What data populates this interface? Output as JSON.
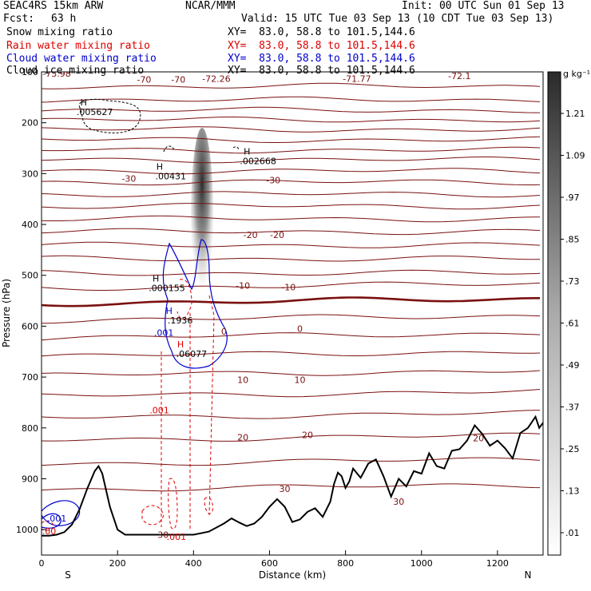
{
  "header": {
    "model": "SEAC4RS 15km ARW",
    "org": "NCAR/MMM",
    "init": "Init: 00 UTC Sun 01 Sep 13",
    "fcst_label": "Fcst:",
    "fcst_value": "63 h",
    "valid": "Valid: 15 UTC Tue 03 Sep 13 (10 CDT Tue 03 Sep 13)",
    "fields": [
      {
        "name": "Snow mixing ratio",
        "color": "#000000",
        "xy": "XY=  83.0, 58.8 to 101.5,144.6"
      },
      {
        "name": "Rain water mixing ratio",
        "color": "#dd0000",
        "xy": "XY=  83.0, 58.8 to 101.5,144.6"
      },
      {
        "name": "Cloud water mixing ratio",
        "color": "#0000cc",
        "xy": "XY=  83.0, 58.8 to 101.5,144.6"
      },
      {
        "name": "Cloud ice mixing ratio",
        "color": "#000000",
        "xy": "XY=  83.0, 58.8 to 101.5,144.6"
      }
    ]
  },
  "chart_data": {
    "type": "contour",
    "xlabel": "Distance (km)",
    "ylabel": "Pressure (hPa)",
    "xlim": [
      0,
      1320
    ],
    "ylim": [
      1050,
      100
    ],
    "x_ticks": [
      0,
      200,
      400,
      600,
      800,
      1000,
      1200
    ],
    "y_ticks": [
      1000,
      900,
      800,
      700,
      600,
      500,
      400,
      300,
      200,
      100
    ],
    "end_labels": {
      "left": "S",
      "right": "N"
    },
    "colorbar": {
      "unit": "g kg⁻¹",
      "ticks": [
        "1.21",
        "1.09",
        ".97",
        ".85",
        ".73",
        ".61",
        ".49",
        ".37",
        ".25",
        ".13",
        ".01"
      ]
    },
    "temperature_contours": {
      "color": "#7a1010",
      "labels": [
        {
          "x": 40,
          "p": 103,
          "text": "-73.98"
        },
        {
          "x": 270,
          "p": 115,
          "text": "-70"
        },
        {
          "x": 360,
          "p": 115,
          "text": "-70"
        },
        {
          "x": 460,
          "p": 113,
          "text": "-72.26"
        },
        {
          "x": 830,
          "p": 113,
          "text": "-71.77"
        },
        {
          "x": 1100,
          "p": 108,
          "text": "-72.1"
        },
        {
          "x": 230,
          "p": 310,
          "text": "-30"
        },
        {
          "x": 610,
          "p": 313,
          "text": "-30"
        },
        {
          "x": 550,
          "p": 420,
          "text": "-20"
        },
        {
          "x": 620,
          "p": 420,
          "text": "-20"
        },
        {
          "x": 530,
          "p": 520,
          "text": "-10"
        },
        {
          "x": 650,
          "p": 523,
          "text": "-10"
        },
        {
          "x": 480,
          "p": 610,
          "text": "0"
        },
        {
          "x": 680,
          "p": 605,
          "text": "0"
        },
        {
          "x": 530,
          "p": 705,
          "text": "10"
        },
        {
          "x": 680,
          "p": 705,
          "text": "10"
        },
        {
          "x": 530,
          "p": 818,
          "text": "20"
        },
        {
          "x": 700,
          "p": 814,
          "text": "20"
        },
        {
          "x": 1150,
          "p": 820,
          "text": "20"
        },
        {
          "x": 640,
          "p": 920,
          "text": "30"
        },
        {
          "x": 940,
          "p": 945,
          "text": "30"
        },
        {
          "x": 320,
          "p": 1010,
          "text": "30"
        }
      ]
    },
    "maxima": [
      {
        "field": "snow",
        "x": 140,
        "p": 175,
        "text": ".005627"
      },
      {
        "field": "snow",
        "x": 340,
        "p": 302,
        "text": ".00431"
      },
      {
        "field": "snow",
        "x": 570,
        "p": 272,
        "text": ".002668"
      },
      {
        "field": "cloud_ice",
        "x": 330,
        "p": 522,
        "text": ".000155"
      },
      {
        "field": "cloud_water",
        "x": 365,
        "p": 585,
        "text": ".1936"
      },
      {
        "field": "rain",
        "x": 395,
        "p": 651,
        "text": ".06077"
      }
    ],
    "contour_labels": [
      {
        "field": "cloud_water",
        "x": 322,
        "p": 613,
        "text": ".001",
        "color": "#0000cc"
      },
      {
        "field": "rain",
        "x": 310,
        "p": 765,
        "text": ".001",
        "color": "#dd0000"
      },
      {
        "field": "cloud_water",
        "x": 40,
        "p": 978,
        "text": ".001",
        "color": "#0000cc"
      },
      {
        "field": "rain",
        "x": 20,
        "p": 1003,
        "text": ".00",
        "color": "#dd0000"
      },
      {
        "field": "rain",
        "x": 355,
        "p": 1014,
        "text": ".001",
        "color": "#dd0000"
      }
    ],
    "terrain": {
      "x": [
        0,
        20,
        40,
        60,
        80,
        100,
        120,
        140,
        150,
        160,
        180,
        200,
        220,
        300,
        400,
        440,
        480,
        500,
        520,
        540,
        560,
        580,
        600,
        620,
        640,
        660,
        680,
        700,
        720,
        740,
        760,
        770,
        780,
        790,
        800,
        810,
        820,
        840,
        860,
        880,
        900,
        920,
        940,
        960,
        980,
        1000,
        1020,
        1040,
        1060,
        1080,
        1100,
        1120,
        1140,
        1160,
        1180,
        1200,
        1220,
        1240,
        1260,
        1280,
        1300,
        1310,
        1320
      ],
      "p": [
        1012,
        1012,
        1010,
        1005,
        990,
        960,
        920,
        885,
        875,
        890,
        955,
        1000,
        1010,
        1010,
        1010,
        1004,
        988,
        978,
        986,
        993,
        988,
        975,
        955,
        940,
        955,
        985,
        980,
        965,
        958,
        975,
        945,
        910,
        888,
        895,
        918,
        905,
        880,
        898,
        870,
        862,
        895,
        935,
        900,
        915,
        885,
        890,
        850,
        875,
        880,
        845,
        842,
        825,
        795,
        812,
        835,
        825,
        840,
        860,
        810,
        800,
        778,
        800,
        790
      ]
    }
  }
}
